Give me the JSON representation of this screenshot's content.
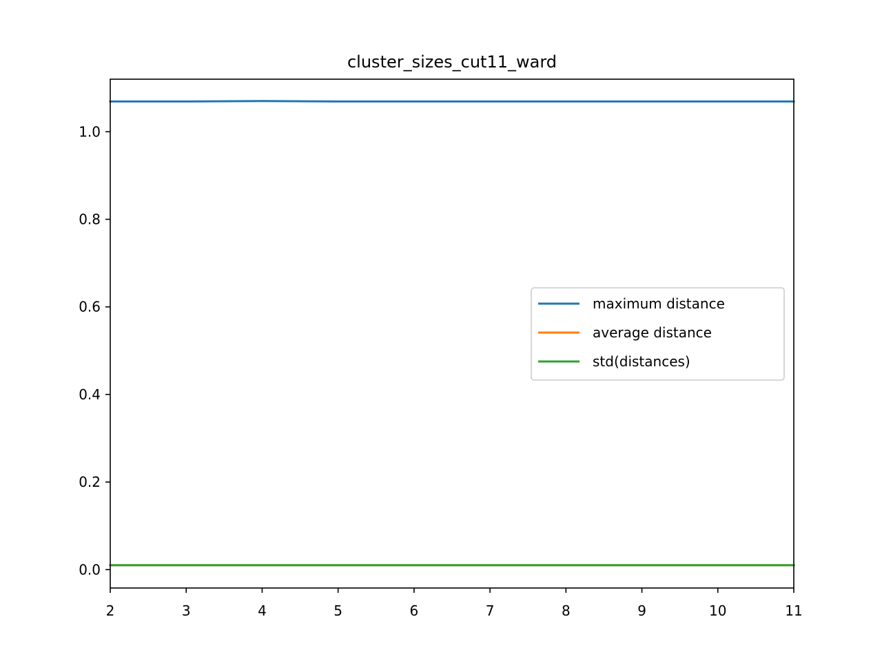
{
  "chart_data": {
    "type": "line",
    "title": "cluster_sizes_cut11_ward",
    "xlabel": "",
    "ylabel": "",
    "xlim": [
      2,
      11
    ],
    "ylim": [
      -0.042,
      1.12
    ],
    "xticks": [
      2,
      3,
      4,
      5,
      6,
      7,
      8,
      9,
      10,
      11
    ],
    "yticks": [
      0.0,
      0.2,
      0.4,
      0.6,
      0.8,
      1.0
    ],
    "ytick_labels": [
      "0.0",
      "0.2",
      "0.4",
      "0.6",
      "0.8",
      "1.0"
    ],
    "grid": false,
    "legend_position": "center-right",
    "x": [
      2,
      3,
      4,
      5,
      6,
      7,
      8,
      9,
      10,
      11
    ],
    "series": [
      {
        "name": "maximum distance",
        "color": "#1f77b4",
        "values": [
          1.069,
          1.069,
          1.07,
          1.069,
          1.069,
          1.069,
          1.069,
          1.069,
          1.069,
          1.069
        ]
      },
      {
        "name": "average distance",
        "color": "#ff7f0e",
        "values": [
          0.01,
          0.01,
          0.01,
          0.01,
          0.01,
          0.01,
          0.01,
          0.01,
          0.01,
          0.01
        ]
      },
      {
        "name": "std(distances)",
        "color": "#2ca02c",
        "values": [
          0.01,
          0.01,
          0.01,
          0.01,
          0.01,
          0.01,
          0.01,
          0.01,
          0.01,
          0.01
        ]
      }
    ]
  }
}
